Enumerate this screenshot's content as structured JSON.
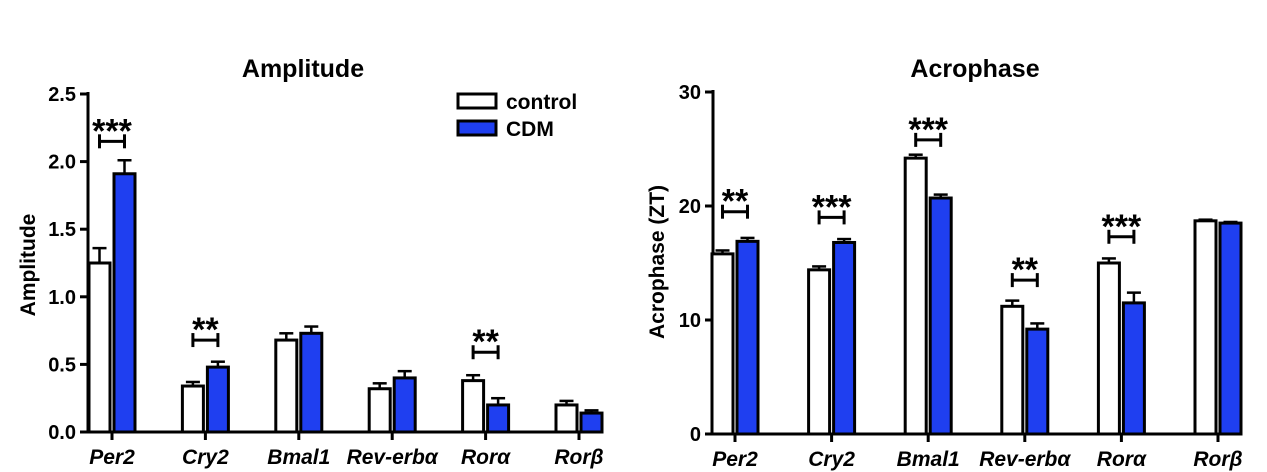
{
  "colors": {
    "control": "#ffffff",
    "cdm": "#1f3ff0",
    "stroke": "#000000"
  },
  "chart_data": [
    {
      "type": "bar",
      "title": "Amplitude",
      "ylabel": "Amplitude",
      "xlabel": "",
      "ylim": [
        0,
        2.5
      ],
      "yticks": [
        0,
        0.5,
        1.0,
        1.5,
        2.0,
        2.5
      ],
      "ytick_labels": [
        "0.0",
        "0.5",
        "1.0",
        "1.5",
        "2.0",
        "2.5"
      ],
      "categories": [
        "Per2",
        "Cry2",
        "Bmal1",
        "Rev-erbα",
        "Rorα",
        "Rorβ"
      ],
      "series": [
        {
          "name": "control",
          "values": [
            1.25,
            0.34,
            0.68,
            0.32,
            0.38,
            0.2
          ],
          "errors": [
            0.11,
            0.03,
            0.05,
            0.04,
            0.04,
            0.03
          ]
        },
        {
          "name": "CDM",
          "values": [
            1.91,
            0.48,
            0.73,
            0.4,
            0.2,
            0.14
          ],
          "errors": [
            0.1,
            0.04,
            0.05,
            0.05,
            0.05,
            0.02
          ]
        }
      ],
      "legend": {
        "placement": "top-right",
        "entries": [
          "control",
          "CDM"
        ]
      },
      "annotations": [
        {
          "category_index": 0,
          "label": "***",
          "level": 2.15
        },
        {
          "category_index": 1,
          "label": "**",
          "level": 0.68
        },
        {
          "category_index": 4,
          "label": "**",
          "level": 0.59
        }
      ]
    },
    {
      "type": "bar",
      "title": "Acrophase",
      "ylabel": "Acrophase (ZT)",
      "xlabel": "",
      "ylim": [
        0,
        30
      ],
      "yticks": [
        0,
        10,
        20,
        30
      ],
      "ytick_labels": [
        "0",
        "10",
        "20",
        "30"
      ],
      "categories": [
        "Per2",
        "Cry2",
        "Bmal1",
        "Rev-erbα",
        "Rorα",
        "Rorβ"
      ],
      "series": [
        {
          "name": "control",
          "values": [
            15.8,
            14.4,
            24.2,
            11.2,
            15.0,
            18.7
          ],
          "errors": [
            0.3,
            0.3,
            0.3,
            0.5,
            0.4,
            0.1
          ]
        },
        {
          "name": "CDM",
          "values": [
            16.9,
            16.8,
            20.7,
            9.2,
            11.5,
            18.5
          ],
          "errors": [
            0.3,
            0.3,
            0.3,
            0.5,
            0.9,
            0.1
          ]
        }
      ],
      "annotations": [
        {
          "category_index": 0,
          "label": "**",
          "level": 19.5
        },
        {
          "category_index": 1,
          "label": "***",
          "level": 19.0
        },
        {
          "category_index": 2,
          "label": "***",
          "level": 25.8
        },
        {
          "category_index": 3,
          "label": "**",
          "level": 13.5
        },
        {
          "category_index": 4,
          "label": "***",
          "level": 17.3
        }
      ]
    }
  ]
}
